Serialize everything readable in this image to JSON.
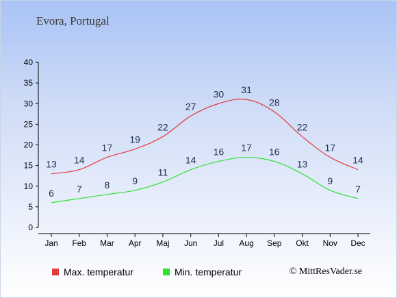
{
  "title": "Evora, Portugal",
  "colors": {
    "max": "#e23b3b",
    "min": "#2fe02f"
  },
  "chart_data": {
    "type": "line",
    "categories": [
      "Jan",
      "Feb",
      "Mar",
      "Apr",
      "Maj",
      "Jun",
      "Jul",
      "Aug",
      "Sep",
      "Okt",
      "Nov",
      "Dec"
    ],
    "series": [
      {
        "name": "Max. temperatur",
        "values": [
          13,
          14,
          17,
          19,
          22,
          27,
          30,
          31,
          28,
          22,
          17,
          14
        ]
      },
      {
        "name": "Min. temperatur",
        "values": [
          6,
          7,
          8,
          9,
          11,
          14,
          16,
          17,
          16,
          13,
          9,
          7
        ]
      }
    ],
    "yticks": [
      0,
      5,
      10,
      15,
      20,
      25,
      30,
      35,
      40
    ],
    "ylim": [
      0,
      40
    ],
    "grid": false,
    "legend": "bottom-left"
  },
  "legend": {
    "max_label": "Max. temperatur",
    "min_label": "Min. temperatur"
  },
  "credit": "© MittResVader.se"
}
